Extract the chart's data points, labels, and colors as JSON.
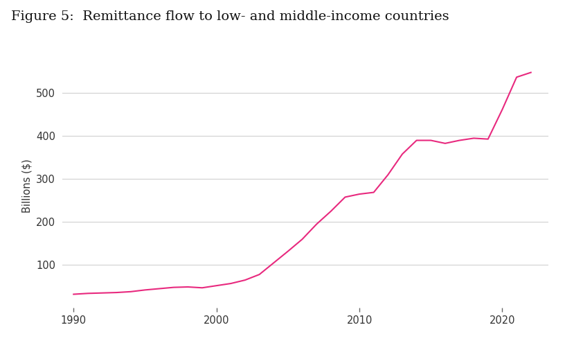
{
  "title": "Figure 5:  Remittance flow to low- and middle-income countries",
  "ylabel": "Billions ($)",
  "line_color": "#e8297e",
  "line_width": 1.5,
  "background_color": "#ffffff",
  "grid_color": "#d0d0d0",
  "years": [
    1990,
    1991,
    1992,
    1993,
    1994,
    1995,
    1996,
    1997,
    1998,
    1999,
    2000,
    2001,
    2002,
    2003,
    2004,
    2005,
    2006,
    2007,
    2008,
    2009,
    2010,
    2011,
    2012,
    2013,
    2014,
    2015,
    2016,
    2017,
    2018,
    2019,
    2020,
    2021,
    2022
  ],
  "values": [
    32,
    34,
    35,
    36,
    38,
    42,
    45,
    48,
    49,
    47,
    52,
    57,
    65,
    78,
    105,
    132,
    160,
    195,
    225,
    258,
    265,
    269,
    310,
    358,
    390,
    390,
    383,
    390,
    395,
    393,
    462,
    537,
    548
  ],
  "xticks": [
    1990,
    2000,
    2010,
    2020
  ],
  "yticks": [
    100,
    200,
    300,
    400,
    500
  ],
  "xlim": [
    1989.2,
    2023.2
  ],
  "ylim": [
    0,
    570
  ],
  "title_fontsize": 14,
  "tick_fontsize": 10.5,
  "ylabel_fontsize": 10.5
}
